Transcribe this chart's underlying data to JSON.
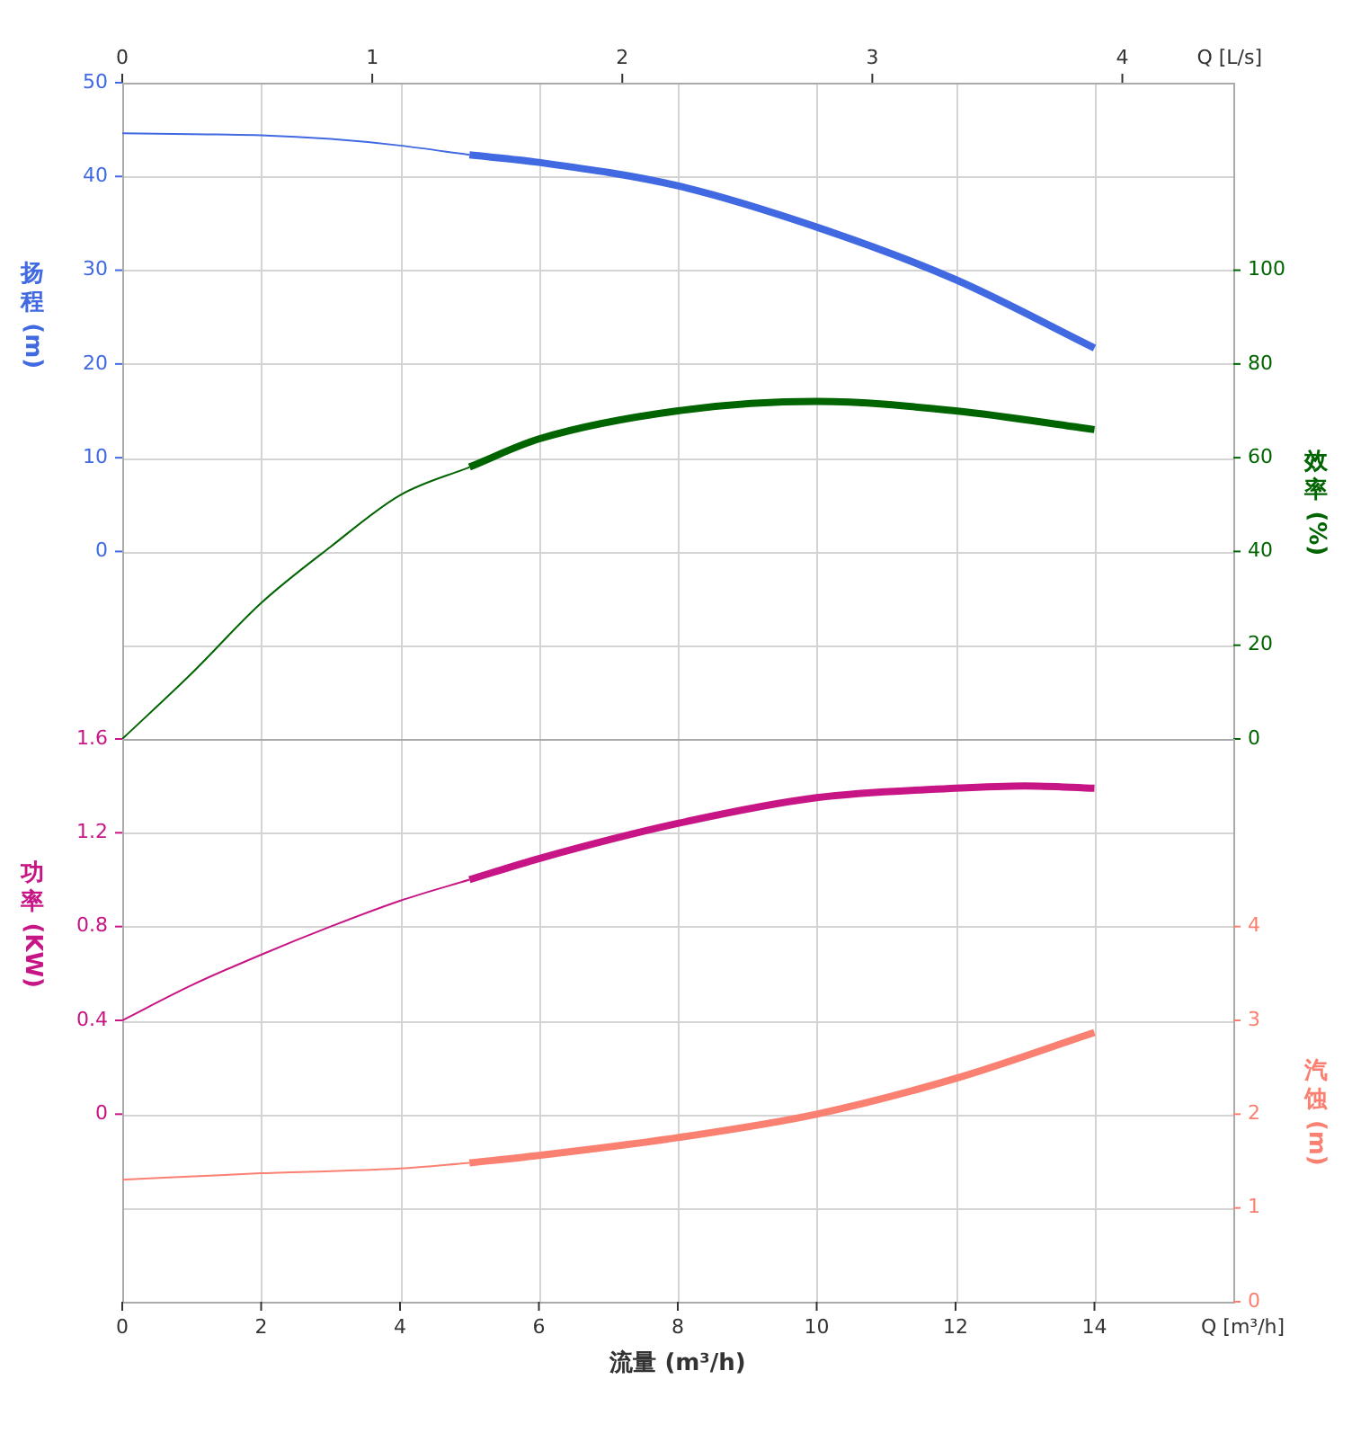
{
  "chart_data": [
    {
      "type": "line",
      "x2label": "Q [L/s]",
      "ylabel": "扬程 (m)",
      "y2label": "效率 (%)",
      "xlim": [
        0,
        16
      ],
      "xticks": [
        0,
        2,
        4,
        6,
        8,
        10,
        12,
        14
      ],
      "x2lim": [
        0,
        4.444
      ],
      "x2ticks": [
        0,
        1,
        2,
        3,
        4
      ],
      "ylim": [
        -20,
        50
      ],
      "yticks": [
        0,
        10,
        20,
        30,
        40,
        50
      ],
      "y2lim": [
        0,
        140
      ],
      "y2ticks": [
        0,
        20,
        40,
        60,
        80,
        100
      ],
      "grid": true,
      "marker": "none",
      "line_style": "solid",
      "tick_labels": "y",
      "series": [
        {
          "color": "#4169e1",
          "x": [
            0,
            1,
            2,
            3,
            4,
            5
          ],
          "values": [
            44.6,
            44.5,
            44.4,
            44.0,
            43.3,
            42.3
          ]
        },
        {
          "color": "#4169e1",
          "x": [
            5,
            6,
            8,
            10,
            12,
            14
          ],
          "values": [
            42.3,
            41.5,
            39.0,
            34.6,
            29.0,
            21.7
          ]
        },
        {
          "axis": "y2",
          "color": "#006400",
          "x": [
            0,
            1,
            2,
            3,
            4,
            5
          ],
          "values": [
            0,
            14,
            29,
            41,
            52,
            58
          ]
        },
        {
          "axis": "y2",
          "color": "#006400",
          "x": [
            5,
            6,
            8,
            10,
            12,
            14
          ],
          "values": [
            58,
            64,
            70,
            72,
            70,
            66
          ]
        }
      ]
    },
    {
      "type": "line",
      "xlabel": "流量 (m³/h)",
      "ylabel": "功率 (KW)",
      "y2label": "汽蚀 (m)",
      "annotations": [
        "Q [m³/h]"
      ],
      "xlim": [
        0,
        16
      ],
      "xticks": [
        0,
        2,
        4,
        6,
        8,
        10,
        12,
        14
      ],
      "ylim": [
        -0.8,
        1.6
      ],
      "yticks": [
        0,
        0.4,
        0.8,
        1.2,
        1.6
      ],
      "y2lim": [
        0,
        6
      ],
      "y2ticks": [
        0,
        1,
        2,
        3,
        4
      ],
      "grid": true,
      "marker": "none",
      "line_style": "solid",
      "series": [
        {
          "color": "#c71585",
          "x": [
            0,
            1,
            2,
            3,
            4,
            5
          ],
          "values": [
            0.4,
            0.55,
            0.68,
            0.8,
            0.91,
            1.0
          ]
        },
        {
          "color": "#c71585",
          "x": [
            5,
            6,
            8,
            10,
            12,
            13,
            14
          ],
          "values": [
            1.0,
            1.09,
            1.24,
            1.35,
            1.39,
            1.4,
            1.39
          ]
        },
        {
          "axis": "y2",
          "color": "#fa8072",
          "x": [
            0,
            2,
            4,
            5
          ],
          "values": [
            1.3,
            1.37,
            1.42,
            1.48
          ]
        },
        {
          "axis": "y2",
          "color": "#fa8072",
          "x": [
            5,
            6,
            8,
            10,
            12,
            14
          ],
          "values": [
            1.48,
            1.56,
            1.75,
            2.0,
            2.38,
            2.87
          ]
        }
      ]
    }
  ]
}
